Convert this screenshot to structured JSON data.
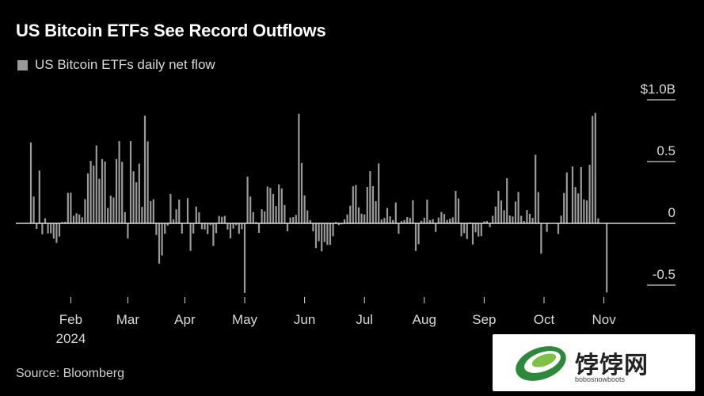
{
  "title": "US Bitcoin ETFs See Record Outflows",
  "legend": "US Bitcoin ETFs daily net flow",
  "source": "Source: Bloomberg",
  "watermark": {
    "name": "饽饽网",
    "url": "bobosnowboots"
  },
  "colors": {
    "positive": "#9a9a9a",
    "negative": "#9a9a9a",
    "highlight": "#e8704a",
    "background": "#000000",
    "text": "#ffffff",
    "gridline": "#ffffff"
  },
  "chart_data": {
    "type": "bar",
    "title": "US Bitcoin ETFs See Record Outflows",
    "series": [
      {
        "name": "US Bitcoin ETFs daily net flow"
      }
    ],
    "unit": "USD billions",
    "y_ticks": [
      {
        "value": 1.0,
        "label": "$1.0B"
      },
      {
        "value": 0.5,
        "label": "0.5"
      },
      {
        "value": 0,
        "label": "0"
      },
      {
        "value": -0.5,
        "label": "-0.5"
      }
    ],
    "ylim": [
      -0.6,
      1.1
    ],
    "grid": false,
    "legend_position": "top-left",
    "x_ticks": [
      {
        "label": "Feb",
        "sublabel": "2024",
        "index": 14
      },
      {
        "label": "Mar",
        "index": 34
      },
      {
        "label": "Apr",
        "index": 54
      },
      {
        "label": "May",
        "index": 75
      },
      {
        "label": "Jun",
        "index": 96
      },
      {
        "label": "Jul",
        "index": 117
      },
      {
        "label": "Aug",
        "index": 138
      },
      {
        "label": "Sep",
        "index": 159
      },
      {
        "label": "Oct",
        "index": 180
      },
      {
        "label": "Nov",
        "index": 201
      }
    ],
    "highlight_index": 205,
    "values": [
      0.655,
      0.217,
      -0.045,
      0.427,
      -0.089,
      0.041,
      -0.082,
      -0.081,
      -0.123,
      -0.158,
      -0.107,
      0.012,
      0.012,
      0.247,
      0.248,
      0.062,
      0.082,
      0.072,
      0.049,
      0.196,
      0.403,
      0.506,
      0.467,
      0.631,
      0.361,
      0.52,
      0.5,
      0.124,
      0.224,
      0.209,
      0.52,
      0.666,
      0.498,
      0.091,
      -0.123,
      0.666,
      0.421,
      0.332,
      0.483,
      0.133,
      0.872,
      0.664,
      0.179,
      0.195,
      -0.094,
      -0.326,
      -0.26,
      -0.084,
      -0.018,
      0.238,
      0.032,
      0.113,
      0.192,
      -0.083,
      0.004,
      0.204,
      -0.223,
      -0.082,
      0.136,
      0.089,
      -0.047,
      -0.05,
      -0.087,
      -0.015,
      -0.183,
      -0.079,
      0.06,
      0.053,
      0.06,
      -0.05,
      -0.121,
      -0.043,
      -0.015,
      -0.084,
      -0.047,
      -0.563,
      0.378,
      0.217,
      0.091,
      0.011,
      -0.077,
      0.114,
      0.096,
      0.298,
      0.287,
      0.238,
      0.14,
      0.315,
      0.282,
      0.148,
      -0.064,
      0.047,
      0.051,
      0.068,
      0.887,
      0.488,
      0.226,
      0.105,
      0.026,
      -0.065,
      -0.2,
      -0.145,
      -0.226,
      -0.152,
      -0.175,
      -0.174,
      -0.105,
      0.011,
      -0.015,
      -0.008,
      0.032,
      0.072,
      0.143,
      0.3,
      0.31,
      0.129,
      0.078,
      0.072,
      0.295,
      0.422,
      0.301,
      0.179,
      0.485,
      0.031,
      0.044,
      0.124,
      0.057,
      0.027,
      0.169,
      -0.084,
      0.018,
      0.027,
      0.051,
      0.044,
      0.187,
      -0.223,
      -0.169,
      0.021,
      0.045,
      0.192,
      0.026,
      0.034,
      -0.069,
      0.047,
      0.092,
      0.076,
      0.028,
      0.037,
      0.049,
      0.262,
      0.202,
      -0.105,
      -0.08,
      -0.127,
      0.008,
      -0.171,
      -0.072,
      -0.107,
      -0.104,
      0.016,
      0.019,
      -0.031,
      0.061,
      0.136,
      0.263,
      0.185,
      0.106,
      0.365,
      0.063,
      0.056,
      0.177,
      0.254,
      0.061,
      0.019,
      0.108,
      0.077,
      0.044,
      0.555,
      0.253,
      -0.246,
      0.0,
      -0.069,
      0.0,
      -0.0,
      0.0,
      -0.086,
      0.062,
      0.246,
      0.412,
      0.0,
      0.46,
      0.294,
      0.242,
      0.455,
      0.194,
      0.185,
      0.474,
      0.87,
      0.894,
      0.041,
      0.0,
      0.0,
      -0.56
    ]
  }
}
